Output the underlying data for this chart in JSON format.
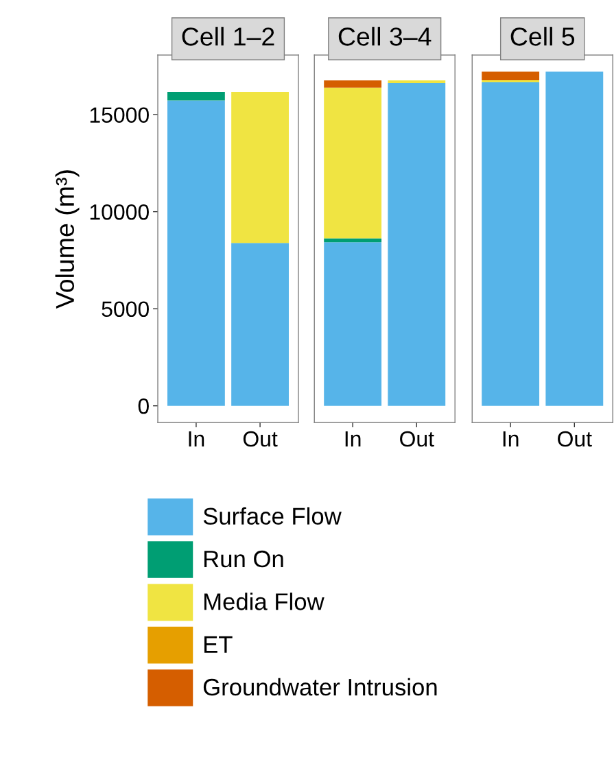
{
  "chart_data": [
    {
      "type": "bar",
      "title": "Cell 1–2",
      "ylabel": "Volume (m³)",
      "categories": [
        "In",
        "Out"
      ],
      "stacked": true,
      "ylim": [
        -860,
        18070
      ],
      "yticks": [
        0,
        5000,
        10000,
        15000
      ],
      "legend": "bottom",
      "grid": false,
      "series": [
        {
          "name": "Surface Flow",
          "color": "#56b4e9",
          "values": [
            15730,
            8390
          ]
        },
        {
          "name": "Run On",
          "color": "#009e73",
          "values": [
            440,
            0
          ]
        },
        {
          "name": "Media Flow",
          "color": "#f0e442",
          "values": [
            0,
            7780
          ]
        },
        {
          "name": "ET",
          "color": "#e69f00",
          "values": [
            0,
            0
          ]
        },
        {
          "name": "Groundwater Intrusion",
          "color": "#d55e00",
          "values": [
            0,
            0
          ]
        }
      ]
    },
    {
      "type": "bar",
      "title": "Cell 3–4",
      "categories": [
        "In",
        "Out"
      ],
      "stacked": true,
      "ylim": [
        -860,
        18070
      ],
      "tick_labels": "x",
      "grid": false,
      "series": [
        {
          "color": "#56b4e9",
          "values": [
            8420,
            16630
          ]
        },
        {
          "color": "#009e73",
          "values": [
            210,
            0
          ]
        },
        {
          "color": "#f0e442",
          "values": [
            7760,
            130
          ]
        },
        {
          "color": "#e69f00",
          "values": [
            0,
            0
          ]
        },
        {
          "color": "#d55e00",
          "values": [
            370,
            0
          ]
        }
      ]
    },
    {
      "type": "bar",
      "title": "Cell 5",
      "categories": [
        "In",
        "Out"
      ],
      "stacked": true,
      "ylim": [
        -860,
        18070
      ],
      "tick_labels": "x",
      "grid": false,
      "series": [
        {
          "color": "#56b4e9",
          "values": [
            16660,
            17210
          ]
        },
        {
          "color": "#009e73",
          "values": [
            0,
            0
          ]
        },
        {
          "color": "#f0e442",
          "values": [
            110,
            0
          ]
        },
        {
          "color": "#e69f00",
          "values": [
            0,
            0
          ]
        },
        {
          "color": "#d55e00",
          "values": [
            440,
            0
          ]
        }
      ]
    }
  ]
}
